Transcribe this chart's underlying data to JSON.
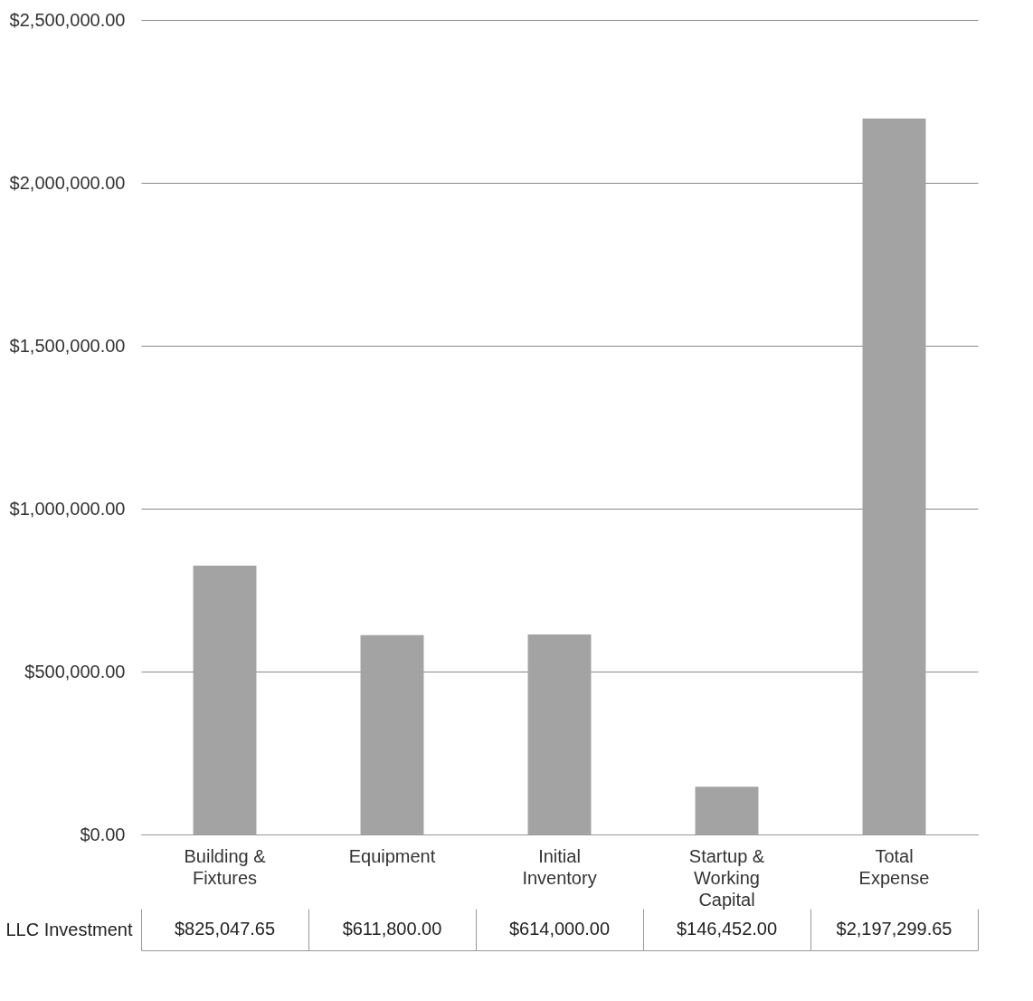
{
  "chart_data": {
    "type": "bar",
    "categories": [
      "Building & Fixtures",
      "Equipment",
      "Initial Inventory",
      "Startup & Working Capital",
      "Total Expense"
    ],
    "series": [
      {
        "name": "LLC Investment",
        "color": "#a3a3a3",
        "values": [
          825047.65,
          611800.0,
          614000.0,
          146452.0,
          2197299.65
        ],
        "value_labels": [
          "$825,047.65",
          "$611,800.00",
          "$614,000.00",
          "$146,452.00",
          "$2,197,299.65"
        ]
      }
    ],
    "ylim": [
      0,
      2500000
    ],
    "yticks": [
      {
        "value": 0,
        "label": "$0.00"
      },
      {
        "value": 500000,
        "label": "$500,000.00"
      },
      {
        "value": 1000000,
        "label": "$1,000,000.00"
      },
      {
        "value": 1500000,
        "label": "$1,500,000.00"
      },
      {
        "value": 2000000,
        "label": "$2,000,000.00"
      },
      {
        "value": 2500000,
        "label": "$2,500,000.00"
      }
    ],
    "grid": "y",
    "legend": "bottom"
  }
}
